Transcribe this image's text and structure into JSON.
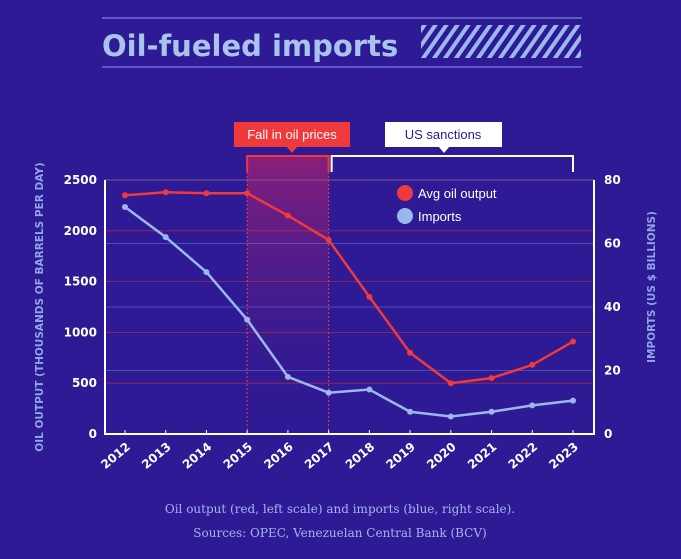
{
  "title": "Oil-fueled imports",
  "caption": {
    "line1": "Oil output (red, left scale) and imports (blue, right scale).",
    "line2": "Sources: OPEC, Venezuelan Central Bank (BCV)"
  },
  "colors": {
    "background": "#2e1a94",
    "oil": "#f0393b",
    "imports": "#9ab8ec",
    "band": "#7a1f8a"
  },
  "annotations": [
    {
      "label": "Fall in oil prices",
      "from": "2015",
      "to": "2017"
    },
    {
      "label": "US sanctions",
      "from": "2017",
      "to": "2023"
    }
  ],
  "chart_data": {
    "type": "line",
    "title": "Oil-fueled imports",
    "x": [
      "2012",
      "2013",
      "2014",
      "2015",
      "2016",
      "2017",
      "2018",
      "2019",
      "2020",
      "2021",
      "2022",
      "2023"
    ],
    "series": [
      {
        "name": "Avg oil output",
        "axis": "left",
        "values": [
          2350,
          2380,
          2370,
          2370,
          2150,
          1910,
          1350,
          800,
          500,
          550,
          680,
          910
        ]
      },
      {
        "name": "Imports",
        "axis": "right",
        "values": [
          71.5,
          62,
          51,
          36,
          18,
          13,
          14,
          7,
          5.5,
          7,
          9,
          10.5
        ]
      }
    ],
    "ylabel": "OIL OUTPUT (THOUSANDS OF BARRELS PER DAY)",
    "ylabel_right": "IMPORTS (US $ BILLIONS)",
    "ylim": [
      0,
      2500
    ],
    "ylim_right": [
      0,
      80
    ],
    "yticks": [
      "0",
      "500",
      "1000",
      "1500",
      "2000",
      "2500"
    ],
    "yticks_right": [
      "0",
      "20",
      "40",
      "60",
      "80"
    ],
    "legend_position": "top-right"
  }
}
